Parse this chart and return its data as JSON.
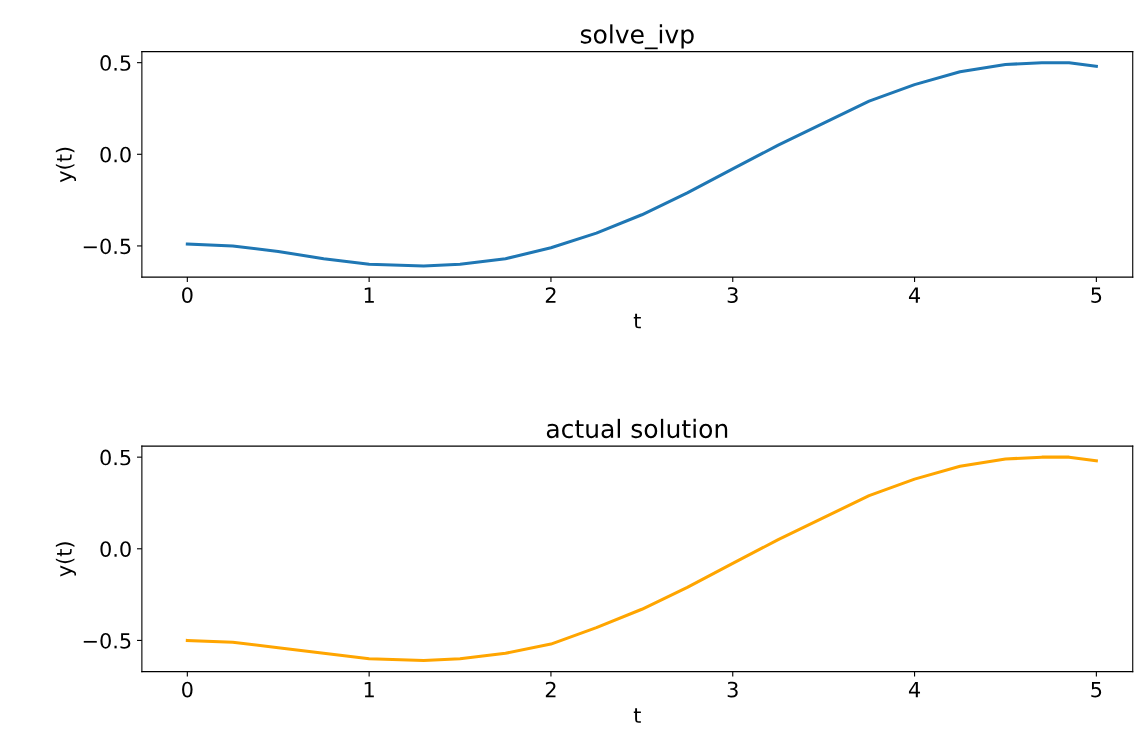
{
  "chart_data": [
    {
      "type": "line",
      "title": "solve_ivp",
      "xlabel": "t",
      "ylabel": "y(t)",
      "xlim": [
        -0.25,
        5.2
      ],
      "ylim": [
        -0.67,
        0.56
      ],
      "xticks": [
        0,
        1,
        2,
        3,
        4,
        5
      ],
      "yticks": [
        {
          "value": -0.5,
          "label": "−0.5"
        },
        {
          "value": 0,
          "label": "0.0"
        },
        {
          "value": 0.5,
          "label": "0.5"
        }
      ],
      "grid": false,
      "legend": false,
      "series": [
        {
          "color": "#1f77b4",
          "x": [
            0,
            0.25,
            0.5,
            0.75,
            1,
            1.3,
            1.5,
            1.75,
            2,
            2.25,
            2.5,
            2.75,
            3,
            3.25,
            3.5,
            3.75,
            4,
            4.25,
            4.5,
            4.7,
            4.85,
            5
          ],
          "values": [
            -0.49,
            -0.5,
            -0.53,
            -0.57,
            -0.6,
            -0.61,
            -0.6,
            -0.57,
            -0.51,
            -0.43,
            -0.33,
            -0.21,
            -0.08,
            0.05,
            0.17,
            0.29,
            0.38,
            0.45,
            0.49,
            0.5,
            0.5,
            0.48
          ]
        }
      ]
    },
    {
      "type": "line",
      "title": "actual solution",
      "xlabel": "t",
      "ylabel": "y(t)",
      "xlim": [
        -0.25,
        5.2
      ],
      "ylim": [
        -0.67,
        0.56
      ],
      "xticks": [
        0,
        1,
        2,
        3,
        4,
        5
      ],
      "yticks": [
        {
          "value": -0.5,
          "label": "−0.5"
        },
        {
          "value": 0,
          "label": "0.0"
        },
        {
          "value": 0.5,
          "label": "0.5"
        }
      ],
      "grid": false,
      "legend": false,
      "series": [
        {
          "color": "#ffa500",
          "x": [
            0,
            0.25,
            0.5,
            0.75,
            1,
            1.3,
            1.5,
            1.75,
            2,
            2.25,
            2.5,
            2.75,
            3,
            3.25,
            3.5,
            3.75,
            4,
            4.25,
            4.5,
            4.7,
            4.85,
            5
          ],
          "values": [
            -0.5,
            -0.51,
            -0.54,
            -0.57,
            -0.6,
            -0.61,
            -0.6,
            -0.57,
            -0.52,
            -0.43,
            -0.33,
            -0.21,
            -0.08,
            0.05,
            0.17,
            0.29,
            0.38,
            0.45,
            0.49,
            0.5,
            0.5,
            0.48
          ]
        }
      ]
    }
  ]
}
